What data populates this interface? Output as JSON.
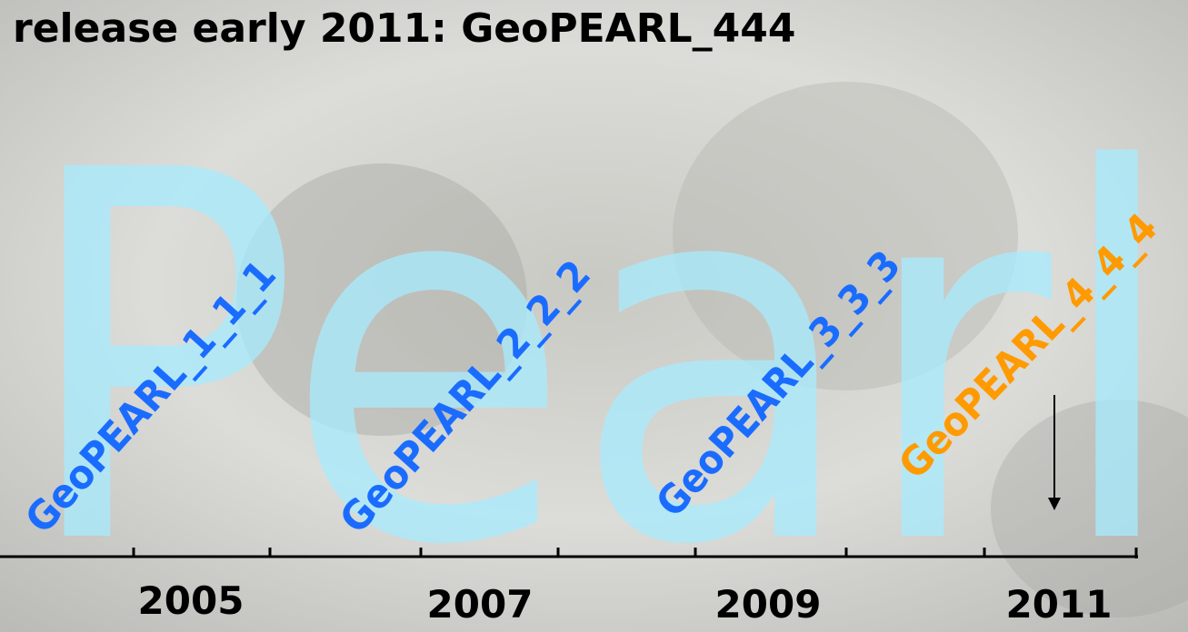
{
  "title": "release early 2011: GeoPEARL_444",
  "background_word": "Pearl",
  "releases": [
    {
      "label": "GeoPEARL_1_1_1"
    },
    {
      "label": "GeoPEARL_2_2_2"
    },
    {
      "label": "GeoPEARL_3_3_3"
    },
    {
      "label": "GeoPEARL_4_4_4"
    }
  ],
  "years": [
    "2005",
    "2007",
    "2009",
    "2011"
  ]
}
